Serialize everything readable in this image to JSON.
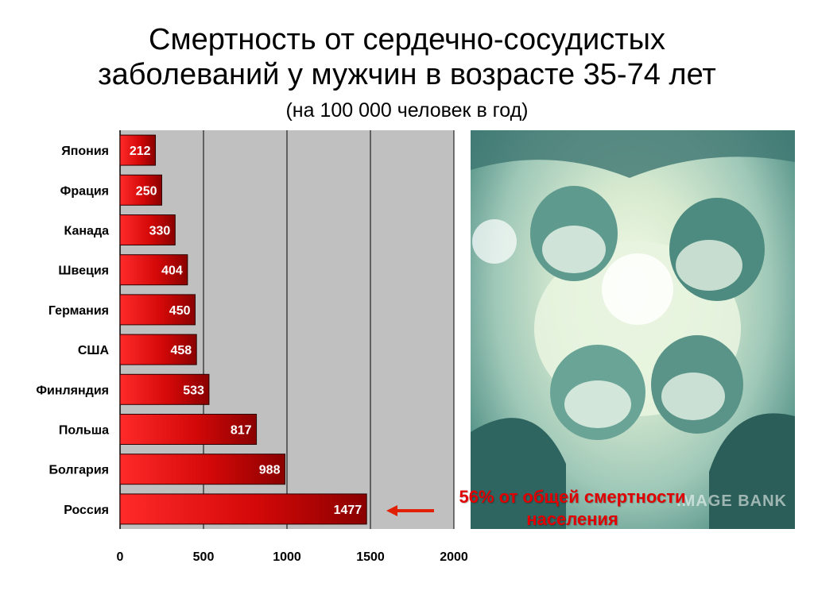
{
  "title_line1": "Смертность от сердечно-сосудистых",
  "title_line2": "заболеваний у мужчин в возрасте 35-74 лет",
  "subtitle": "(на 100 000 человек в год)",
  "annotation": {
    "line1": "56% от общей смертности",
    "line2": "населения"
  },
  "photo": {
    "watermark": "IMAGE BANK"
  },
  "colors": {
    "bar_light": "#ff2a2a",
    "bar_dark": "#8a0000",
    "plot_bg": "#c0c0c0",
    "annotation": "#e00000",
    "arrow": "#e02000"
  },
  "chart_data": {
    "type": "bar",
    "orientation": "horizontal",
    "categories": [
      "Япония",
      "Фрация",
      "Канада",
      "Швеция",
      "Германия",
      "США",
      "Финляндия",
      "Польша",
      "Болгария",
      "Россия"
    ],
    "values": [
      212,
      250,
      330,
      404,
      450,
      458,
      533,
      817,
      988,
      1477
    ],
    "xlim": [
      0,
      2000
    ],
    "xticks": [
      0,
      500,
      1000,
      1500,
      2000
    ],
    "grid": true,
    "data_labels": true
  }
}
